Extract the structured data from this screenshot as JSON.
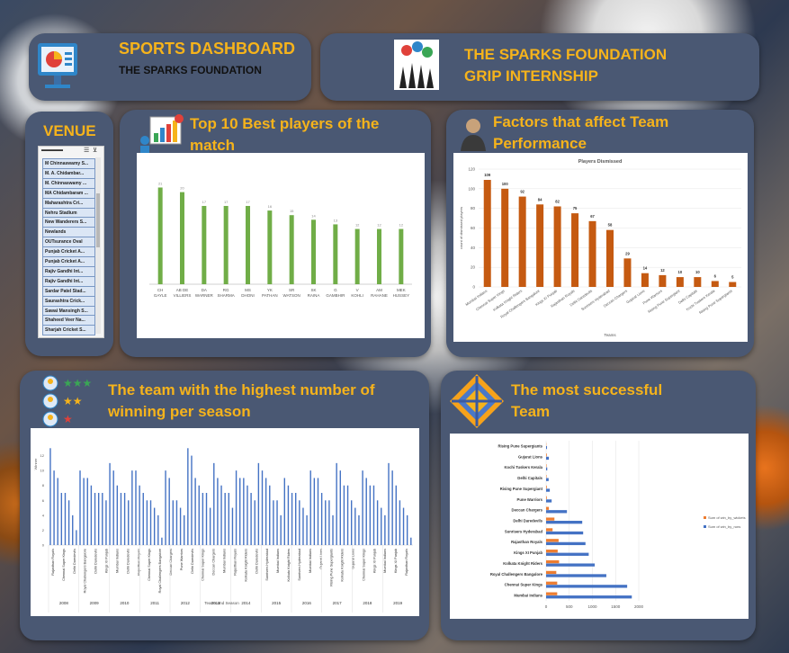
{
  "header": {
    "title": "SPORTS DASHBOARD",
    "subtitle": "THE SPARKS FOUNDATION",
    "org_line1": "THE SPARKS FOUNDATION",
    "org_line2": "GRIP INTERNSHIP"
  },
  "venue": {
    "title": "VENUE",
    "items": [
      "M Chinnaswamy S...",
      "M. A. Chidambar...",
      "M. Chinnaswamy ...",
      "MA Chidambaram ...",
      "Maharashtra Cri...",
      "Nehru Stadium",
      "New Wanderers S...",
      "Newlands",
      "OUTsurance Oval",
      "Punjab Cricket A...",
      "Punjab Cricket A...",
      "Rajiv Gandhi Int...",
      "Rajiv Gandhi Int...",
      "Sardar Patel Stad...",
      "Saurashtra Crick...",
      "Sawai Mansingh S...",
      "Shaheed Veer Na...",
      "Sharjah Cricket S..."
    ]
  },
  "colors": {
    "green": "#70ad47",
    "orange": "#c55a11",
    "blue": "#4472c4",
    "light_orange": "#ed7d31",
    "accent": "#f6b31b"
  },
  "chart_data": [
    {
      "type": "bar",
      "title": "Top 10 Best players of the match",
      "categories": [
        "CH GAYLE",
        "AB DE VILLIERS",
        "DA WARNER",
        "RG SHARMA",
        "MS DHONI",
        "YK PATHAN",
        "SR WATSON",
        "SK RAINA",
        "G GAMBHIR",
        "V KOHLI",
        "AM RAHANE",
        "MEK HUSSEY"
      ],
      "values": [
        21,
        20,
        17,
        17,
        17,
        16,
        15,
        14,
        13,
        12,
        12,
        12
      ],
      "ylim": [
        0,
        25
      ]
    },
    {
      "type": "bar",
      "title": "Players Dismissed",
      "panel_title": "Factors that affect Team Performance",
      "xlabel": "Teams",
      "ylabel": "count of dismissed players",
      "categories": [
        "Mumbai Indians",
        "Chennai Super Kings",
        "Kolkata Knight Riders",
        "Royal Challengers Bangalore",
        "Kings XI Punjab",
        "Rajasthan Royals",
        "Delhi Daredevils",
        "Sunrisers Hyderabad",
        "Deccan Chargers",
        "Gujarat Lions",
        "Pune Warriors",
        "Rising Pune Supergiant",
        "Delhi Capitals",
        "Kochi Tuskers Kerala",
        "Rising Pune Supergiants"
      ],
      "values": [
        109,
        100,
        92,
        84,
        82,
        75,
        67,
        58,
        29,
        14,
        12,
        10,
        10,
        6,
        5
      ],
      "yticks": [
        0,
        20,
        40,
        60,
        80,
        100,
        120
      ],
      "ylim": [
        0,
        120
      ]
    },
    {
      "type": "bar",
      "title": "The team with the highest number of winning per season",
      "xlabel": "Teams and Season",
      "ylabel": "Winner",
      "yticks": [
        0,
        2,
        4,
        6,
        8,
        10,
        12
      ],
      "ylim": [
        0,
        14
      ],
      "seasons": [
        "2008",
        "2009",
        "2010",
        "2011",
        "2012",
        "2013",
        "2014",
        "2015",
        "2016",
        "2017",
        "2018",
        "2019"
      ],
      "category_labels": [
        "Rajasthan Royals",
        "Chennai Super Kings",
        "Delhi Daredevils",
        "Royal Challengers Bangalore",
        "Delhi Daredevils",
        "Kings XI Punjab",
        "Mumbai Indians",
        "Delhi Daredevils",
        "Rajasthan Royals",
        "Chennai Super Kings",
        "Royal Challengers Bangalore",
        "Deccan Chargers",
        "Pune Warriors",
        "Delhi Daredevils",
        "Chennai Super Kings",
        "Deccan Chargers",
        "Mumbai Indians",
        "Rajasthan Royals",
        "Kolkata Knight Riders",
        "Delhi Daredevils",
        "Sunrisers Hyderabad",
        "Mumbai Indians",
        "Kolkata Knight Riders",
        "Sunrisers Hyderabad",
        "Mumbai Indians",
        "Gujarat Lions",
        "Rising Pune Supergiants",
        "Kolkata Knight Riders",
        "Gujarat Lions",
        "Chennai Super Kings",
        "Kings XI Punjab",
        "Mumbai Indians",
        "Kings XI Punjab",
        "Rajasthan Royals"
      ],
      "values": [
        13,
        10,
        9,
        7,
        7,
        6,
        4,
        2,
        10,
        9,
        9,
        8,
        7,
        7,
        7,
        6,
        11,
        10,
        8,
        7,
        7,
        6,
        10,
        10,
        8,
        7,
        6,
        6,
        5,
        4,
        1,
        10,
        9,
        6,
        6,
        5,
        4,
        13,
        12,
        9,
        8,
        7,
        7,
        5,
        11,
        9,
        8,
        7,
        7,
        5,
        10,
        9,
        9,
        8,
        7,
        6,
        11,
        10,
        9,
        8,
        6,
        6,
        4,
        9,
        8,
        7,
        7,
        6,
        5,
        4,
        10,
        9,
        9,
        7,
        6,
        6,
        4,
        11,
        10,
        8,
        8,
        6,
        5,
        4,
        10,
        9,
        8,
        8,
        6,
        5,
        4,
        11,
        10,
        8,
        6,
        5,
        4,
        1
      ]
    },
    {
      "type": "bar",
      "orientation": "horizontal",
      "title": "The most successful Team",
      "categories": [
        "Rising Pune Supergiants",
        "Gujarat Lions",
        "Kochi Tuskers Kerala",
        "Delhi Capitals",
        "Rising Pune Supergiant",
        "Pune Warriors",
        "Deccan Chargers",
        "Delhi Daredevils",
        "Sunrisers Hyderabad",
        "Rajasthan Royals",
        "Kings XI Punjab",
        "Kolkata Knight Riders",
        "Royal Challengers Bangalore",
        "Chennai Super Kings",
        "Mumbai Indians"
      ],
      "series": [
        {
          "name": "Sum of win_by_wickets",
          "values": [
            5,
            15,
            10,
            10,
            15,
            15,
            60,
            180,
            140,
            270,
            250,
            280,
            220,
            240,
            240
          ]
        },
        {
          "name": "Sum of win_by_runs",
          "values": [
            20,
            60,
            25,
            55,
            80,
            120,
            450,
            780,
            800,
            850,
            920,
            1050,
            1300,
            1750,
            1850
          ]
        }
      ],
      "xticks": [
        0,
        500,
        1000,
        1500,
        2000
      ],
      "xlim": [
        0,
        2000
      ]
    }
  ]
}
